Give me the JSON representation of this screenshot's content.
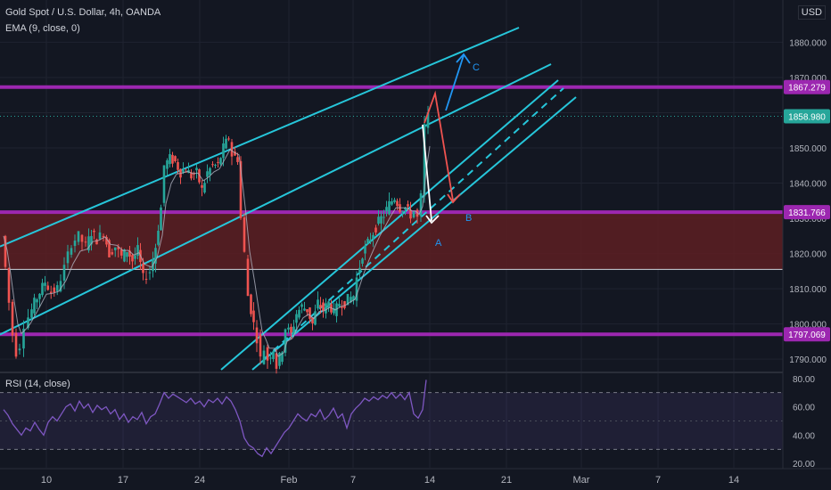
{
  "header": {
    "symbol_line": "Gold Spot / U.S. Dollar, 4h, OANDA",
    "ema_line": "EMA (9, close, 0)",
    "rsi_line": "RSI (14, close)",
    "currency": "USD"
  },
  "colors": {
    "background": "#131722",
    "up_candle": "#26a69a",
    "down_candle": "#ef5350",
    "channel_lines": "#26c6da",
    "level_lines": "#9c27b0",
    "zone_fill": "#5d1f22",
    "ema": "#b0b3c0",
    "rsi": "#7e57c2",
    "last_price_badge": "#26a69a",
    "arrow_down": "#ef5350",
    "arrow_up": "#2196f3",
    "arrow_white": "#ffffff"
  },
  "chart_data": [
    {
      "type": "candlestick",
      "title": "Gold Spot / U.S. Dollar, 4h, OANDA",
      "indicator": "EMA (9, close, 0)",
      "x_tick_labels": [
        "10",
        "17",
        "24",
        "Feb",
        "7",
        "14",
        "21",
        "Mar",
        "7",
        "14"
      ],
      "y_tick_labels": [
        "1790.000",
        "1800.000",
        "1810.000",
        "1820.000",
        "1830.000",
        "1840.000",
        "1850.000",
        "1860.000",
        "1870.000",
        "1880.000"
      ],
      "ylim": [
        1787,
        1892
      ],
      "price_labels": [
        {
          "value": 1867.279,
          "text": "1867.279",
          "kind": "level"
        },
        {
          "value": 1858.98,
          "text": "1858.980",
          "kind": "last"
        },
        {
          "value": 1831.766,
          "text": "1831.766",
          "kind": "level"
        },
        {
          "value": 1797.069,
          "text": "1797.069",
          "kind": "level"
        }
      ],
      "horizontal_levels": [
        1867.279,
        1831.766,
        1815.5,
        1797.069
      ],
      "supply_zone": [
        1815.5,
        1831.766
      ],
      "annotations": [
        "A",
        "B",
        "C"
      ],
      "price_path": [
        [
          0,
          1825
        ],
        [
          4,
          1816
        ],
        [
          8,
          1806
        ],
        [
          12,
          1797
        ],
        [
          16,
          1792
        ],
        [
          20,
          1794
        ],
        [
          25,
          1800
        ],
        [
          30,
          1802
        ],
        [
          36,
          1806
        ],
        [
          42,
          1809
        ],
        [
          48,
          1812
        ],
        [
          55,
          1809
        ],
        [
          62,
          1810
        ],
        [
          70,
          1816
        ],
        [
          78,
          1823
        ],
        [
          86,
          1825
        ],
        [
          94,
          1822
        ],
        [
          100,
          1826
        ],
        [
          106,
          1824
        ],
        [
          114,
          1826
        ],
        [
          120,
          1820
        ],
        [
          127,
          1822
        ],
        [
          134,
          1819
        ],
        [
          140,
          1821
        ],
        [
          146,
          1818
        ],
        [
          152,
          1821
        ],
        [
          158,
          1813
        ],
        [
          166,
          1815
        ],
        [
          172,
          1822
        ],
        [
          178,
          1833
        ],
        [
          182,
          1845
        ],
        [
          188,
          1847
        ],
        [
          194,
          1846
        ],
        [
          200,
          1843
        ],
        [
          206,
          1844
        ],
        [
          212,
          1842
        ],
        [
          218,
          1843
        ],
        [
          224,
          1838
        ],
        [
          230,
          1843
        ],
        [
          236,
          1845
        ],
        [
          242,
          1845
        ],
        [
          248,
          1850
        ],
        [
          254,
          1853
        ],
        [
          258,
          1848
        ],
        [
          264,
          1847
        ],
        [
          268,
          1830
        ],
        [
          272,
          1820
        ],
        [
          276,
          1808
        ],
        [
          282,
          1800
        ],
        [
          286,
          1796
        ],
        [
          290,
          1790
        ],
        [
          294,
          1793
        ],
        [
          298,
          1790
        ],
        [
          304,
          1793
        ],
        [
          308,
          1788
        ],
        [
          314,
          1793
        ],
        [
          318,
          1799
        ],
        [
          324,
          1797
        ],
        [
          330,
          1803
        ],
        [
          336,
          1805
        ],
        [
          342,
          1804
        ],
        [
          348,
          1800
        ],
        [
          354,
          1806
        ],
        [
          360,
          1804
        ],
        [
          366,
          1806
        ],
        [
          372,
          1803
        ],
        [
          378,
          1806
        ],
        [
          384,
          1806
        ],
        [
          388,
          1807
        ],
        [
          394,
          1808
        ],
        [
          398,
          1813
        ],
        [
          404,
          1820
        ],
        [
          410,
          1823
        ],
        [
          416,
          1826
        ],
        [
          422,
          1829
        ],
        [
          428,
          1831
        ],
        [
          434,
          1834
        ],
        [
          440,
          1836
        ],
        [
          446,
          1833
        ],
        [
          452,
          1833
        ],
        [
          458,
          1831
        ],
        [
          462,
          1832
        ],
        [
          466,
          1830
        ],
        [
          470,
          1836
        ],
        [
          474,
          1856
        ],
        [
          478,
          1858.98
        ]
      ]
    },
    {
      "type": "line",
      "title": "RSI (14, close)",
      "y_tick_labels": [
        "20.00",
        "40.00",
        "60.00",
        "80.00"
      ],
      "ylim": [
        17,
        83
      ],
      "bands": [
        30,
        70
      ],
      "series": [
        {
          "values": [
            [
              0,
              58
            ],
            [
              5,
              54
            ],
            [
              10,
              48
            ],
            [
              15,
              44
            ],
            [
              20,
              40
            ],
            [
              25,
              45
            ],
            [
              30,
              43
            ],
            [
              35,
              49
            ],
            [
              40,
              44
            ],
            [
              45,
              40
            ],
            [
              50,
              49
            ],
            [
              55,
              53
            ],
            [
              60,
              50
            ],
            [
              65,
              55
            ],
            [
              70,
              60
            ],
            [
              75,
              62
            ],
            [
              80,
              57
            ],
            [
              85,
              64
            ],
            [
              90,
              59
            ],
            [
              95,
              62
            ],
            [
              100,
              56
            ],
            [
              105,
              61
            ],
            [
              110,
              58
            ],
            [
              115,
              60
            ],
            [
              120,
              55
            ],
            [
              125,
              58
            ],
            [
              130,
              51
            ],
            [
              135,
              55
            ],
            [
              140,
              49
            ],
            [
              145,
              53
            ],
            [
              150,
              51
            ],
            [
              155,
              56
            ],
            [
              160,
              48
            ],
            [
              165,
              53
            ],
            [
              170,
              55
            ],
            [
              175,
              62
            ],
            [
              180,
              70
            ],
            [
              185,
              66
            ],
            [
              190,
              69
            ],
            [
              195,
              67
            ],
            [
              200,
              65
            ],
            [
              205,
              63
            ],
            [
              210,
              66
            ],
            [
              215,
              62
            ],
            [
              220,
              64
            ],
            [
              225,
              60
            ],
            [
              230,
              65
            ],
            [
              235,
              63
            ],
            [
              240,
              66
            ],
            [
              245,
              62
            ],
            [
              250,
              67
            ],
            [
              255,
              64
            ],
            [
              260,
              58
            ],
            [
              265,
              50
            ],
            [
              270,
              38
            ],
            [
              275,
              33
            ],
            [
              280,
              31
            ],
            [
              285,
              27
            ],
            [
              290,
              25
            ],
            [
              295,
              31
            ],
            [
              300,
              27
            ],
            [
              305,
              32
            ],
            [
              310,
              37
            ],
            [
              315,
              42
            ],
            [
              320,
              45
            ],
            [
              325,
              50
            ],
            [
              330,
              55
            ],
            [
              335,
              52
            ],
            [
              340,
              50
            ],
            [
              345,
              55
            ],
            [
              350,
              53
            ],
            [
              355,
              58
            ],
            [
              360,
              51
            ],
            [
              365,
              54
            ],
            [
              370,
              59
            ],
            [
              375,
              52
            ],
            [
              380,
              55
            ],
            [
              385,
              45
            ],
            [
              390,
              55
            ],
            [
              395,
              59
            ],
            [
              400,
              62
            ],
            [
              405,
              66
            ],
            [
              410,
              64
            ],
            [
              415,
              67
            ],
            [
              420,
              65
            ],
            [
              425,
              68
            ],
            [
              430,
              66
            ],
            [
              435,
              70
            ],
            [
              440,
              66
            ],
            [
              445,
              69
            ],
            [
              450,
              65
            ],
            [
              455,
              70
            ],
            [
              460,
              55
            ],
            [
              465,
              52
            ],
            [
              470,
              58
            ],
            [
              474,
              79
            ]
          ]
        }
      ]
    }
  ]
}
